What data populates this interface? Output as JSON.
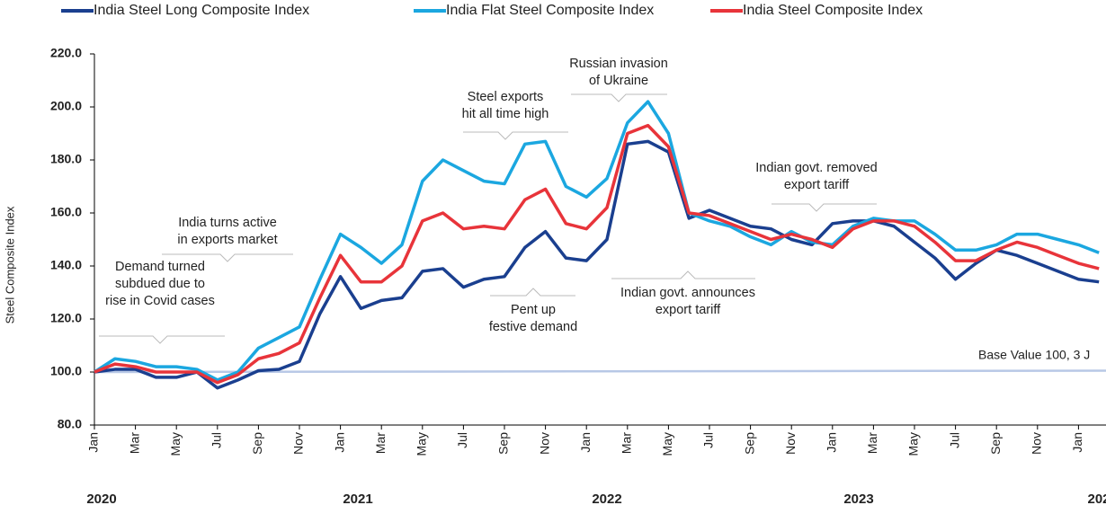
{
  "chart_data": {
    "type": "line",
    "y_label": "Steel Composite Index",
    "categories": [
      "Jan",
      null,
      "Mar",
      null,
      "May",
      null,
      "Jul",
      null,
      "Sep",
      null,
      "Nov",
      null,
      "Jan",
      null,
      "Mar",
      null,
      "May",
      null,
      "Jul",
      null,
      "Sep",
      null,
      "Nov",
      null,
      "Jan",
      null,
      "Mar",
      null,
      "May",
      null,
      "Jul",
      null,
      "Sep",
      null,
      "Nov",
      null,
      "Jan",
      null,
      "Mar",
      null,
      "May",
      null,
      "Jul",
      null,
      "Sep",
      null,
      "Nov",
      null,
      "Jan",
      null
    ],
    "years": [
      "2020",
      "2021",
      "2022",
      "2023",
      "202"
    ],
    "series": [
      {
        "name": "India Steel Long Composite Index",
        "color": "#1a3f8f",
        "values": [
          100,
          101,
          101,
          98,
          98,
          100,
          94,
          97,
          100.5,
          101,
          104,
          122,
          136,
          124,
          127,
          128,
          138,
          139,
          132,
          135,
          136,
          147,
          153,
          143,
          142,
          150,
          186,
          187,
          183,
          158,
          161,
          158,
          155,
          154,
          150,
          148,
          156,
          157,
          157,
          155,
          149,
          143,
          135,
          141,
          146,
          144,
          141,
          138,
          135,
          134
        ]
      },
      {
        "name": "India Flat Steel Composite Index",
        "color": "#1ba7e0",
        "values": [
          100,
          105,
          104,
          102,
          102,
          101,
          97,
          100,
          109,
          113,
          117,
          135,
          152,
          147,
          141,
          148,
          172,
          180,
          176,
          172,
          171,
          186,
          187,
          170,
          166,
          173,
          194,
          202,
          190,
          160,
          157,
          155,
          151,
          148,
          153,
          149,
          148,
          155,
          158,
          157,
          157,
          152,
          146,
          146,
          148,
          152,
          152,
          150,
          148,
          145
        ]
      },
      {
        "name": "India Steel Composite Index",
        "color": "#e8343a",
        "values": [
          100,
          103,
          102,
          100,
          100,
          100,
          96,
          99,
          105,
          107,
          111,
          128,
          144,
          134,
          134,
          140,
          157,
          160,
          154,
          155,
          154,
          165,
          169,
          156,
          154,
          162,
          190,
          193,
          185,
          160,
          159,
          156,
          153,
          150,
          152,
          150,
          147,
          154,
          157,
          157,
          155,
          149,
          142,
          142,
          146,
          149,
          147,
          144,
          141,
          139
        ]
      }
    ],
    "baseline": {
      "value": 100,
      "color": "#b8c8e6",
      "label": "Base Value 100, 3 J"
    },
    "annotations": [
      [
        "Demand turned",
        "subdued due to",
        "rise in Covid cases"
      ],
      [
        "India turns active",
        "in exports market"
      ],
      [
        "Steel exports",
        "hit all time high"
      ],
      [
        "Russian invasion",
        "of Ukraine"
      ],
      [
        "Indian govt. removed",
        "export tariff"
      ],
      [
        "Indian govt. announces",
        "export tariff"
      ],
      [
        "Pent up",
        "festive demand"
      ]
    ],
    "ylim": [
      80,
      220
    ],
    "yticks": [
      {
        "value": 80,
        "label": "80.0"
      },
      {
        "value": 100,
        "label": "100.0"
      },
      {
        "value": 120,
        "label": "120.0"
      },
      {
        "value": 140,
        "label": "140.0"
      },
      {
        "value": 160,
        "label": "160.0"
      },
      {
        "value": 180,
        "label": "180.0"
      },
      {
        "value": 200,
        "label": "200.0"
      },
      {
        "value": 220,
        "label": "220.0"
      }
    ],
    "legend": "top"
  }
}
